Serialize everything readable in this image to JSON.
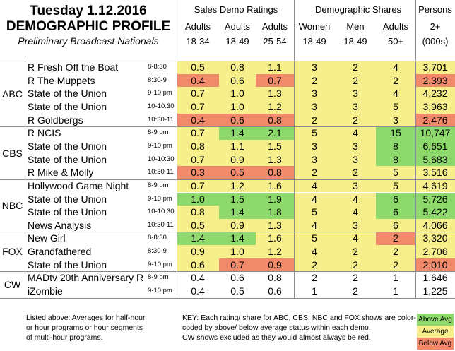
{
  "header": {
    "title_line1": "Tuesday 1.12.2016",
    "title_line2": "DEMOGRAPHIC PROFILE",
    "subtitle": "Preliminary Broadcast Nationals",
    "group_sales": "Sales Demo Ratings",
    "group_shares": "Demographic Shares",
    "group_persons": "Persons",
    "columns": [
      {
        "top": "Adults",
        "bottom": "18-34"
      },
      {
        "top": "Adults",
        "bottom": "18-49"
      },
      {
        "top": "Adults",
        "bottom": "25-54"
      },
      {
        "top": "Women",
        "bottom": "18-49"
      },
      {
        "top": "Men",
        "bottom": "18-49"
      },
      {
        "top": "Adults",
        "bottom": "50+"
      },
      {
        "top": "2+",
        "bottom": "(000s)"
      }
    ]
  },
  "colors": {
    "above": "#8ed96b",
    "average": "#f7ef8c",
    "below": "#f08a6a"
  },
  "chart_data": {
    "type": "table",
    "networks": [
      {
        "name": "ABC",
        "rows": [
          0,
          4
        ]
      },
      {
        "name": "CBS",
        "rows": [
          5,
          8
        ]
      },
      {
        "name": "NBC",
        "rows": [
          9,
          12
        ]
      },
      {
        "name": "FOX",
        "rows": [
          13,
          15
        ]
      },
      {
        "name": "CW",
        "rows": [
          16,
          17
        ]
      }
    ],
    "rows": [
      {
        "show": "R Fresh Off the Boat",
        "time": "8-8:30",
        "values": [
          "0.5",
          "0.8",
          "1.1",
          "3",
          "2",
          "4",
          "3,701"
        ],
        "status": [
          "avg",
          "avg",
          "avg",
          "avg",
          "avg",
          "avg",
          "avg"
        ]
      },
      {
        "show": "R The Muppets",
        "time": "8:30-9",
        "values": [
          "0.4",
          "0.6",
          "0.7",
          "2",
          "2",
          "2",
          "2,393"
        ],
        "status": [
          "below",
          "avg",
          "below",
          "avg",
          "avg",
          "avg",
          "below"
        ]
      },
      {
        "show": "State of the Union",
        "time": "9-10 pm",
        "values": [
          "0.7",
          "1.0",
          "1.3",
          "3",
          "3",
          "4",
          "4,232"
        ],
        "status": [
          "avg",
          "avg",
          "avg",
          "avg",
          "avg",
          "avg",
          "avg"
        ]
      },
      {
        "show": "State of the Union",
        "time": "10-10:30",
        "values": [
          "0.7",
          "1.0",
          "1.2",
          "3",
          "3",
          "5",
          "3,963"
        ],
        "status": [
          "avg",
          "avg",
          "avg",
          "avg",
          "avg",
          "avg",
          "avg"
        ]
      },
      {
        "show": "R Goldbergs",
        "time": "10:30-11",
        "values": [
          "0.4",
          "0.6",
          "0.8",
          "2",
          "2",
          "3",
          "2,476"
        ],
        "status": [
          "below",
          "below",
          "below",
          "avg",
          "avg",
          "avg",
          "below"
        ]
      },
      {
        "show": "R NCIS",
        "time": "8-9 pm",
        "values": [
          "0.7",
          "1.4",
          "2.1",
          "5",
          "4",
          "15",
          "10,747"
        ],
        "status": [
          "avg",
          "above",
          "above",
          "avg",
          "avg",
          "above",
          "above"
        ]
      },
      {
        "show": "State of the Union",
        "time": "9-10 pm",
        "values": [
          "0.8",
          "1.1",
          "1.5",
          "3",
          "3",
          "8",
          "6,651"
        ],
        "status": [
          "avg",
          "avg",
          "avg",
          "avg",
          "avg",
          "above",
          "above"
        ]
      },
      {
        "show": "State of the Union",
        "time": "10-10:30",
        "values": [
          "0.7",
          "0.9",
          "1.3",
          "3",
          "3",
          "8",
          "5,683"
        ],
        "status": [
          "avg",
          "avg",
          "avg",
          "avg",
          "avg",
          "above",
          "above"
        ]
      },
      {
        "show": "R Mike & Molly",
        "time": "10:30-11",
        "values": [
          "0.3",
          "0.5",
          "0.8",
          "2",
          "2",
          "5",
          "3,516"
        ],
        "status": [
          "below",
          "below",
          "below",
          "avg",
          "avg",
          "avg",
          "avg"
        ]
      },
      {
        "show": "Hollywood Game Night",
        "time": "8-9 pm",
        "values": [
          "0.7",
          "1.2",
          "1.6",
          "4",
          "3",
          "5",
          "4,619"
        ],
        "status": [
          "avg",
          "avg",
          "avg",
          "avg",
          "avg",
          "avg",
          "avg"
        ]
      },
      {
        "show": "State of the Union",
        "time": "9-10 pm",
        "values": [
          "1.0",
          "1.5",
          "1.9",
          "4",
          "4",
          "6",
          "5,726"
        ],
        "status": [
          "above",
          "above",
          "above",
          "avg",
          "avg",
          "above",
          "above"
        ]
      },
      {
        "show": "State of the Union",
        "time": "10-10:30",
        "values": [
          "0.8",
          "1.4",
          "1.8",
          "5",
          "4",
          "6",
          "5,422"
        ],
        "status": [
          "avg",
          "above",
          "above",
          "avg",
          "avg",
          "above",
          "above"
        ]
      },
      {
        "show": "News Analysis",
        "time": "10:30-11",
        "values": [
          "0.5",
          "0.9",
          "1.3",
          "4",
          "3",
          "6",
          "4,066"
        ],
        "status": [
          "avg",
          "avg",
          "avg",
          "avg",
          "avg",
          "avg",
          "avg"
        ]
      },
      {
        "show": "New Girl",
        "time": "8-8:30",
        "values": [
          "1.4",
          "1.4",
          "1.6",
          "5",
          "4",
          "2",
          "3,320"
        ],
        "status": [
          "above",
          "above",
          "avg",
          "avg",
          "avg",
          "below",
          "avg"
        ]
      },
      {
        "show": "Grandfathered",
        "time": "8:30-9",
        "values": [
          "0.9",
          "1.0",
          "1.2",
          "4",
          "2",
          "2",
          "2,706"
        ],
        "status": [
          "avg",
          "avg",
          "avg",
          "avg",
          "avg",
          "avg",
          "avg"
        ]
      },
      {
        "show": "State of the Union",
        "time": "9-10 pm",
        "values": [
          "0.6",
          "0.7",
          "0.9",
          "2",
          "2",
          "2",
          "2,010"
        ],
        "status": [
          "avg",
          "below",
          "below",
          "avg",
          "avg",
          "avg",
          "below"
        ]
      },
      {
        "show": "MADtv 20th Anniversary R",
        "time": "8-9 pm",
        "values": [
          "0.4",
          "0.6",
          "0.8",
          "2",
          "2",
          "1",
          "1,646"
        ],
        "status": [
          "none",
          "none",
          "none",
          "none",
          "none",
          "none",
          "none"
        ]
      },
      {
        "show": "iZombie",
        "time": "9-10 pm",
        "values": [
          "0.4",
          "0.5",
          "0.6",
          "1",
          "2",
          "1",
          "1,225"
        ],
        "status": [
          "none",
          "none",
          "none",
          "none",
          "none",
          "none",
          "none"
        ]
      }
    ]
  },
  "footer": {
    "left_lines": [
      "Listed above: Averages for half-hour",
      "or hour programs or hour segments",
      "of multi-hour programs."
    ],
    "key_lines": [
      "KEY: Each rating/ share for ABC, CBS, NBC and FOX shows are color-",
      "coded by above/ below average status within each demo.",
      "CW shows excluded as they would almost always be red."
    ],
    "legend": {
      "above": "Above Avg",
      "average": "Average",
      "below": "Below Avg"
    }
  }
}
